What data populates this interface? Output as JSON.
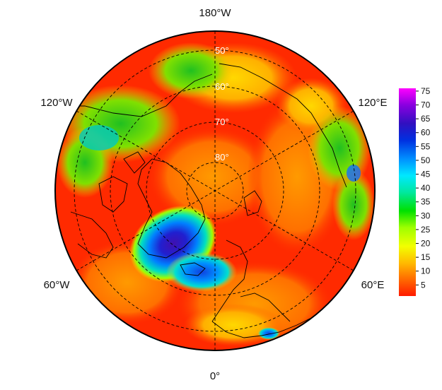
{
  "map": {
    "projection": "north polar stereographic",
    "center": "North Pole",
    "longitude_labels": {
      "top": "180°W",
      "upper_left": "120°W",
      "upper_right": "120°E",
      "lower_left": "60°W",
      "lower_right": "60°E",
      "bottom": "0°"
    },
    "latitude_labels": [
      "50°",
      "60°",
      "70°",
      "80°"
    ],
    "field_description_colors": {
      "background": "#ff2a00",
      "mid": "#ff8800",
      "greenland_low": "#3a1ac0"
    }
  },
  "colorbar": {
    "ticks": [
      "75",
      "70",
      "65",
      "60",
      "55",
      "50",
      "45",
      "40",
      "35",
      "30",
      "25",
      "20",
      "15",
      "10",
      "5"
    ],
    "range": [
      1,
      76
    ],
    "colors": [
      "#ff1a00",
      "#ff6a00",
      "#ffbb00",
      "#f2ff00",
      "#9dff00",
      "#00e000",
      "#00e8a0",
      "#00e8ff",
      "#0090ff",
      "#0030e0",
      "#3010c0",
      "#8a00e0",
      "#ff00ff"
    ]
  }
}
